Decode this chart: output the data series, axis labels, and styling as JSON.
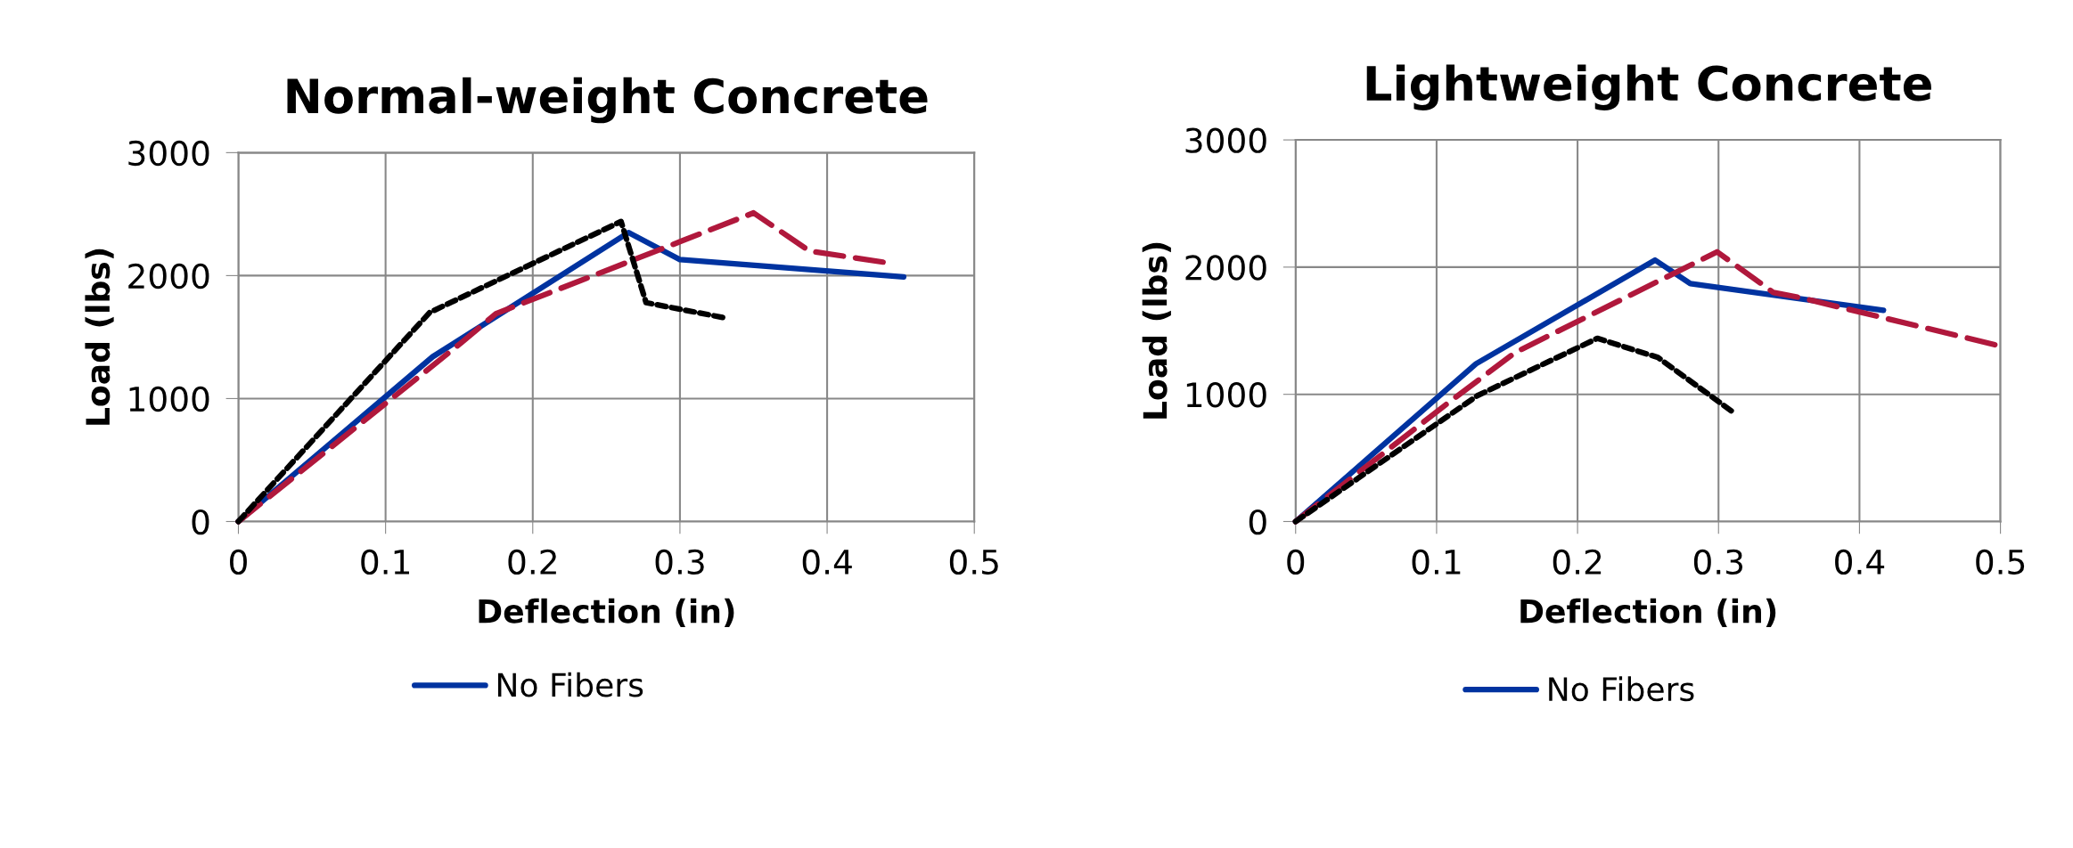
{
  "chart_data": [
    {
      "type": "line",
      "title": "Normal-weight Concrete",
      "xlabel": "Deflection (in)",
      "ylabel": "Load (lbs)",
      "xlim": [
        0,
        0.5
      ],
      "xticks": [
        0,
        0.1,
        0.2,
        0.3,
        0.4,
        0.5
      ],
      "ylim": [
        0,
        3000
      ],
      "yticks": [
        0,
        1000,
        2000,
        3000
      ],
      "grid": true,
      "legend": "bottom",
      "marker": "none",
      "series": [
        {
          "name": "No Fibers",
          "color": "#0033a0",
          "line_style": "solid",
          "x": [
            0,
            0.132,
            0.265,
            0.3,
            0.452
          ],
          "values": [
            0,
            1340,
            2350,
            2130,
            1990
          ]
        },
        {
          "color": "#b0183c",
          "line_style": "dashed",
          "x": [
            0,
            0.151,
            0.175,
            0.35,
            0.388,
            0.438
          ],
          "values": [
            0,
            1450,
            1690,
            2510,
            2200,
            2110
          ]
        },
        {
          "color": "#000000",
          "line_style": "dotted",
          "x": [
            0,
            0.13,
            0.26,
            0.277,
            0.329
          ],
          "values": [
            0,
            1700,
            2440,
            1780,
            1660
          ]
        }
      ]
    },
    {
      "type": "line",
      "title": "Lightweight Concrete",
      "xlabel": "Deflection (in)",
      "ylabel": "Load (lbs)",
      "xlim": [
        0,
        0.5
      ],
      "xticks": [
        0,
        0.1,
        0.2,
        0.3,
        0.4,
        0.5
      ],
      "ylim": [
        0,
        3000
      ],
      "yticks": [
        0,
        1000,
        2000,
        3000
      ],
      "grid": true,
      "legend": "bottom",
      "marker": "none",
      "series": [
        {
          "name": "No Fibers",
          "color": "#0033a0",
          "line_style": "solid",
          "x": [
            0,
            0.128,
            0.255,
            0.28,
            0.417
          ],
          "values": [
            0,
            1240,
            2055,
            1870,
            1660
          ]
        },
        {
          "color": "#b0183c",
          "line_style": "dashed",
          "x": [
            0,
            0.112,
            0.156,
            0.299,
            0.339,
            0.358,
            0.496
          ],
          "values": [
            0,
            965,
            1330,
            2120,
            1800,
            1760,
            1390
          ]
        },
        {
          "color": "#000000",
          "line_style": "dotted",
          "x": [
            0,
            0.129,
            0.214,
            0.257,
            0.309
          ],
          "values": [
            0,
            990,
            1440,
            1290,
            870
          ]
        }
      ]
    }
  ]
}
